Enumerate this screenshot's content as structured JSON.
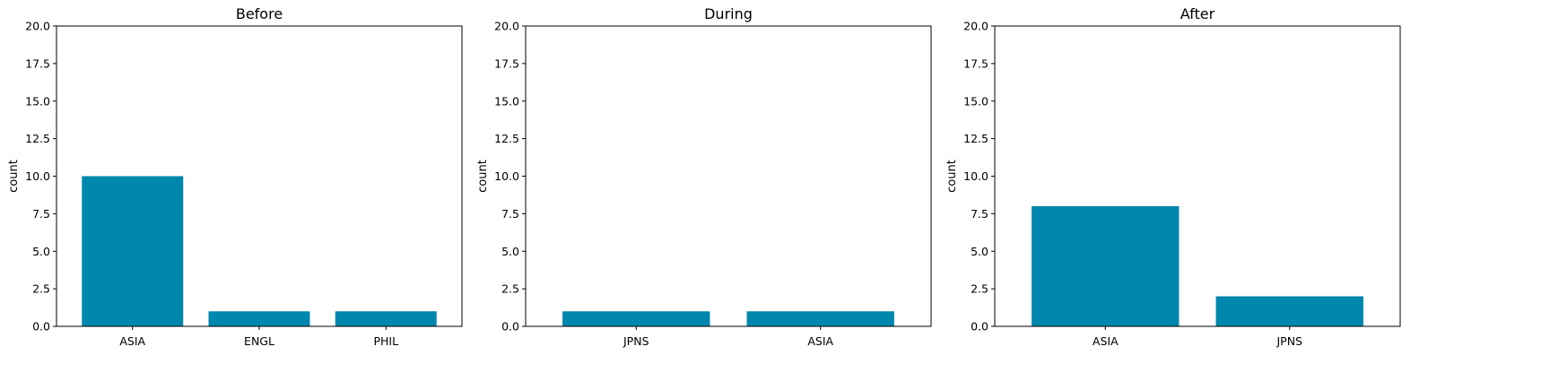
{
  "bar_color": "#0087ad",
  "chart_data": [
    {
      "type": "bar",
      "title": "Before",
      "xlabel": "",
      "ylabel": "count",
      "categories": [
        "ASIA",
        "ENGL",
        "PHIL"
      ],
      "values": [
        10,
        1,
        1
      ],
      "ylim": [
        0,
        20
      ],
      "yticks": [
        "0.0",
        "2.5",
        "5.0",
        "7.5",
        "10.0",
        "12.5",
        "15.0",
        "17.5",
        "20.0"
      ],
      "grid": false,
      "legend": "none"
    },
    {
      "type": "bar",
      "title": "During",
      "xlabel": "",
      "ylabel": "count",
      "categories": [
        "JPNS",
        "ASIA"
      ],
      "values": [
        1,
        1
      ],
      "ylim": [
        0,
        20
      ],
      "yticks": [
        "0.0",
        "2.5",
        "5.0",
        "7.5",
        "10.0",
        "12.5",
        "15.0",
        "17.5",
        "20.0"
      ],
      "grid": false,
      "legend": "none"
    },
    {
      "type": "bar",
      "title": "After",
      "xlabel": "",
      "ylabel": "count",
      "categories": [
        "ASIA",
        "JPNS"
      ],
      "values": [
        8,
        2
      ],
      "ylim": [
        0,
        20
      ],
      "yticks": [
        "0.0",
        "2.5",
        "5.0",
        "7.5",
        "10.0",
        "12.5",
        "15.0",
        "17.5",
        "20.0"
      ],
      "grid": false,
      "legend": "none"
    }
  ]
}
